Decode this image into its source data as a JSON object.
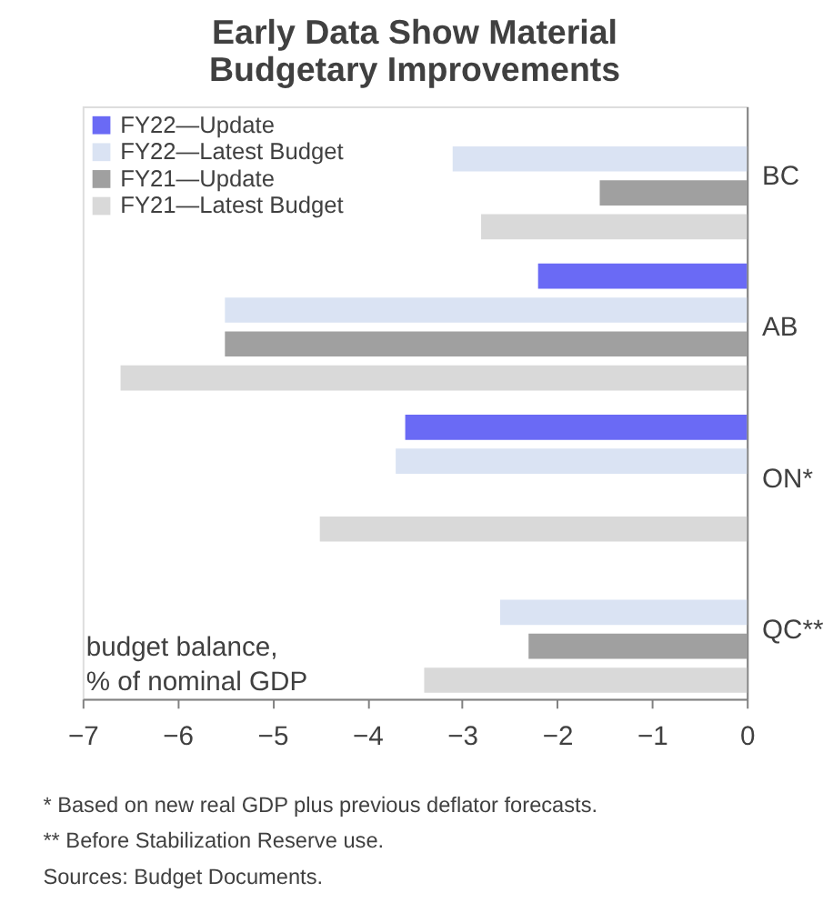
{
  "chart_data": {
    "type": "bar",
    "orientation": "horizontal",
    "title": [
      "Early Data Show Material",
      "Budgetary Improvements"
    ],
    "xlabel": "budget balance, % of nominal GDP",
    "categories": [
      "BC",
      "AB",
      "ON*",
      "QC**"
    ],
    "series": [
      {
        "name": "FY22—Update",
        "color": "#6a6af5",
        "values": [
          null,
          -2.2,
          -3.6,
          null
        ]
      },
      {
        "name": "FY22—Latest Budget",
        "color": "#dae3f3",
        "values": [
          -3.1,
          -5.5,
          -3.7,
          -2.6
        ]
      },
      {
        "name": "FY21—Update",
        "color": "#a0a0a0",
        "values": [
          -1.55,
          -5.5,
          null,
          -2.3
        ]
      },
      {
        "name": "FY21—Latest Budget",
        "color": "#d9d9d9",
        "values": [
          -2.8,
          -6.6,
          -4.5,
          -3.4
        ]
      }
    ],
    "xlim": [
      -7,
      0
    ],
    "xticks": [
      -7,
      -6,
      -5,
      -4,
      -3,
      -2,
      -1,
      0
    ],
    "grid": false,
    "legend": "top left",
    "annotations": [
      "* Based on new real GDP plus previous deflator forecasts.",
      "** Before Stabilization Reserve use.",
      "Sources: Budget Documents."
    ]
  }
}
